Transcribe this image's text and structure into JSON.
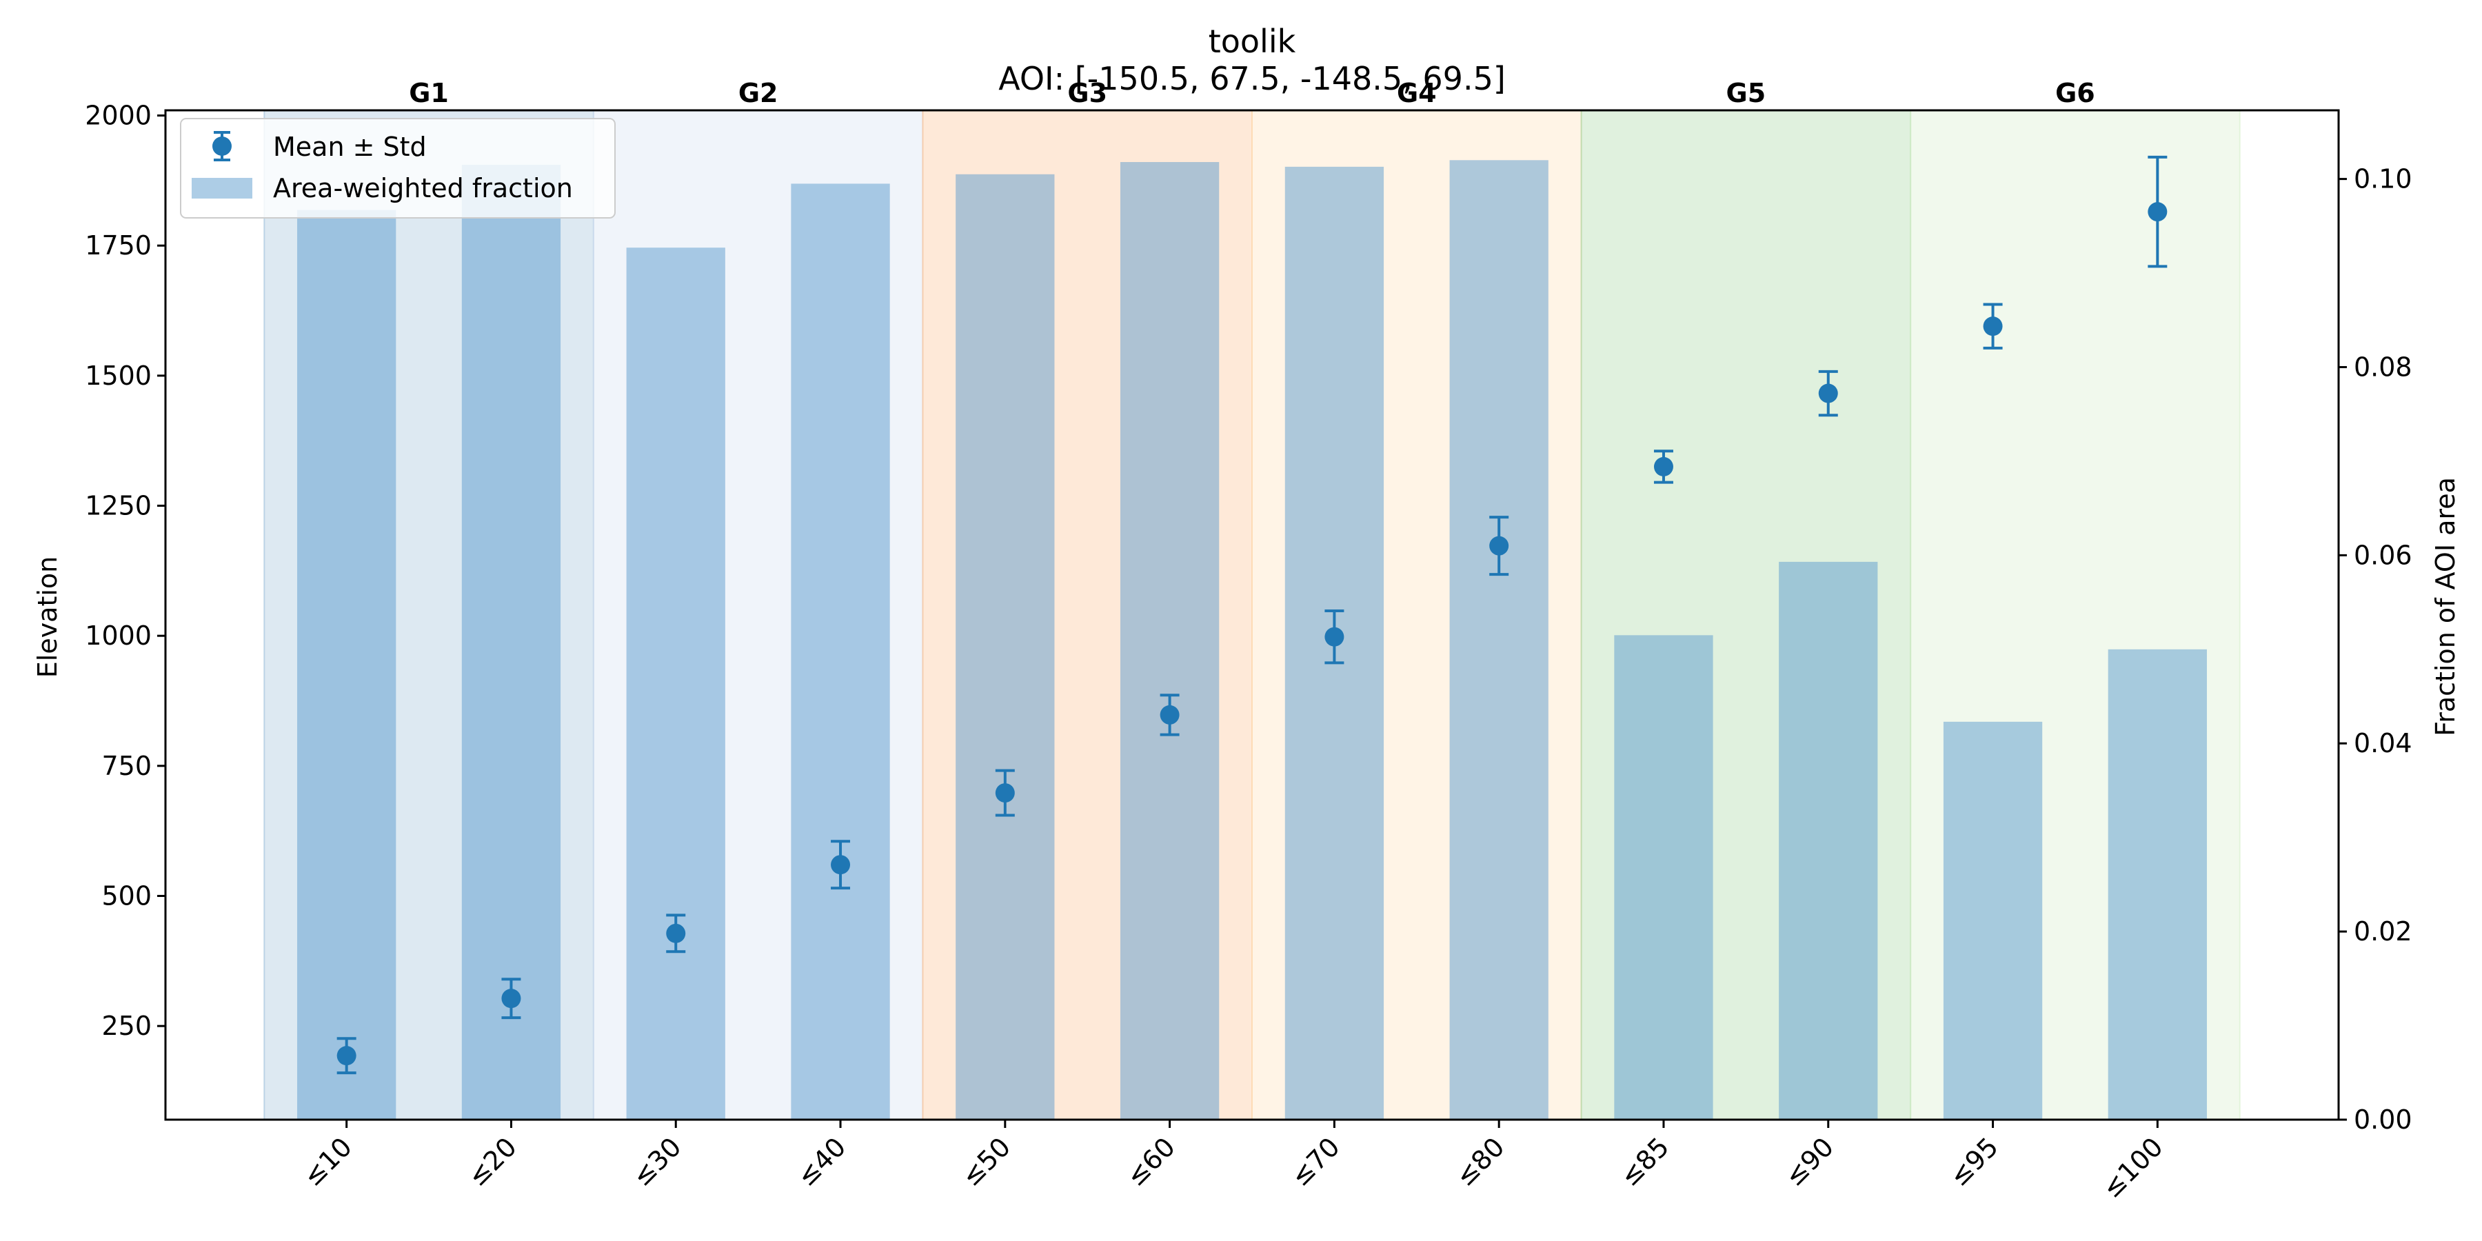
{
  "chart_data": {
    "type": "bar",
    "title": "toolik",
    "subtitle": "AOI: [-150.5, 67.5, -148.5, 69.5]",
    "categories": [
      "≤10",
      "≤20",
      "≤30",
      "≤40",
      "≤50",
      "≤60",
      "≤70",
      "≤80",
      "≤85",
      "≤90",
      "≤95",
      "≤100"
    ],
    "groups": [
      {
        "label": "G1",
        "color": "#9ebfda",
        "start": 0,
        "end": 1
      },
      {
        "label": "G2",
        "color": "#d3dff0",
        "start": 2,
        "end": 3
      },
      {
        "label": "G3",
        "color": "#fdc08f",
        "start": 4,
        "end": 5
      },
      {
        "label": "G4",
        "color": "#fedfb8",
        "start": 6,
        "end": 7
      },
      {
        "label": "G5",
        "color": "#a5d6a0",
        "start": 8,
        "end": 9
      },
      {
        "label": "G6",
        "color": "#d6efcc",
        "start": 10,
        "end": 11
      }
    ],
    "series": [
      {
        "name": "Mean ± Std",
        "type": "errorbar",
        "axis": "left",
        "color": "#1f77b4",
        "values": [
          193,
          303,
          428,
          560,
          698,
          848,
          998,
          1173,
          1325,
          1466,
          1595,
          1815
        ],
        "errors": [
          33,
          37,
          35,
          45,
          43,
          38,
          50,
          55,
          30,
          42,
          42,
          105
        ]
      },
      {
        "name": "Area-weighted fraction",
        "type": "bar",
        "axis": "right",
        "color": "#5b9ccd",
        "values": [
          0.0967,
          0.1015,
          0.0927,
          0.0995,
          0.1005,
          0.1018,
          0.1013,
          0.102,
          0.0515,
          0.0593,
          0.0423,
          0.05
        ]
      }
    ],
    "ylabel": "Elevation",
    "ylim": [
      70,
      2010
    ],
    "yticks": [
      250,
      500,
      750,
      1000,
      1250,
      1500,
      1750,
      2000
    ],
    "y2label": "Fraction of AOI area",
    "y2lim": [
      0,
      0.1073
    ],
    "y2ticks": [
      "0.00",
      "0.02",
      "0.04",
      "0.06",
      "0.08",
      "0.10"
    ],
    "legend_position": "top-left",
    "grid": false
  }
}
